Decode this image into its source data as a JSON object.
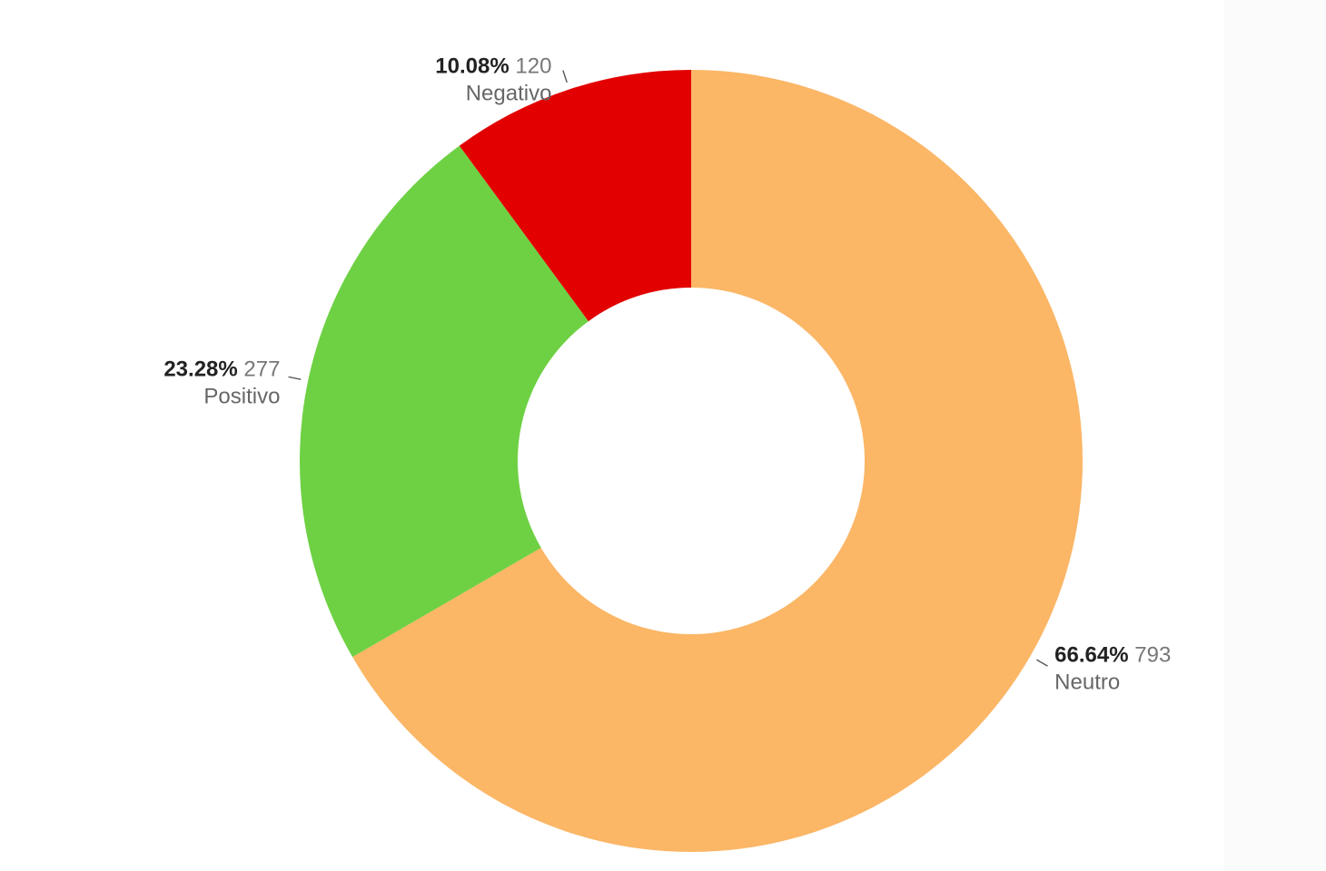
{
  "chart_data": {
    "type": "pie",
    "variant": "donut",
    "slices": [
      {
        "label": "Neutro",
        "value": 793,
        "percent": "66.64%",
        "color": "#FBB666",
        "label_side": "right"
      },
      {
        "label": "Positivo",
        "value": 277,
        "percent": "23.28%",
        "color": "#6ED144",
        "label_side": "left"
      },
      {
        "label": "Negativo",
        "value": 120,
        "percent": "10.08%",
        "color": "#E20000",
        "label_side": "left"
      }
    ],
    "start_angle_deg": 0,
    "direction": "clockwise",
    "legend": "none"
  }
}
